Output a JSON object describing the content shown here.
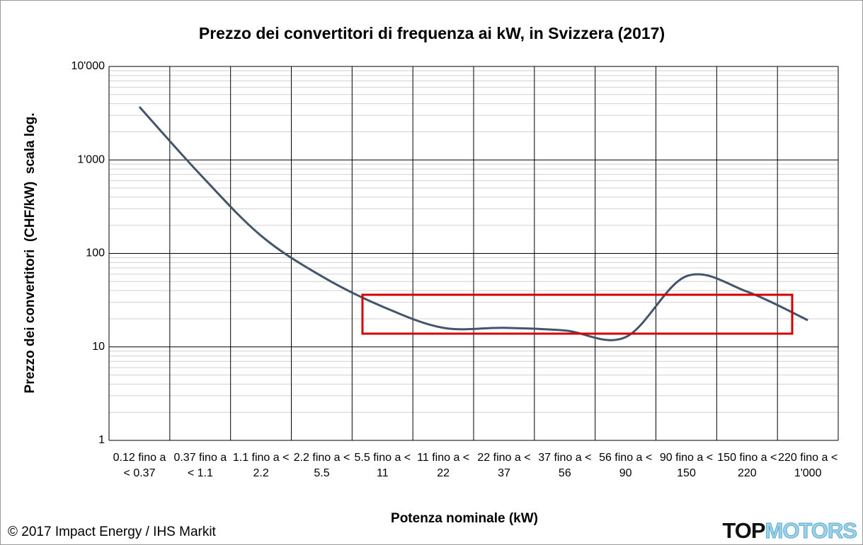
{
  "chart_data": {
    "type": "line",
    "title": "Prezzo dei convertitori di frequenza ai kW, in Svizzera (2017)",
    "x_label": "Potenza nominale (kW)",
    "y_label": "Prezzo dei convertitori  (CHF/kW)  scala log.",
    "categories": [
      "0.12 fino a < 0.37",
      "0.37 fino a < 1.1",
      "1.1 fino a < 2.2",
      "2.2 fino a < 5.5",
      "5.5 fino a < 11",
      "11 fino a < 22",
      "22 fino a < 37",
      "37 fino a < 56",
      "56 fino a < 90",
      "90 fino a < 150",
      "150 fino a < 220",
      "220 fino a < 1'000"
    ],
    "series": [
      {
        "name": "Prezzo",
        "color": "#44546a",
        "values": [
          3700,
          700,
          155,
          57,
          27,
          16,
          16,
          15,
          12.7,
          57,
          39,
          19.3
        ]
      }
    ],
    "ylim": [
      1,
      10000
    ],
    "yticks": [
      1,
      10,
      100,
      {
        "value": 1000,
        "label": "1'000"
      },
      {
        "value": 10000,
        "label": "10'000"
      }
    ],
    "log_scale": true,
    "grid": true,
    "minor_grid": true,
    "footer": "© 2017 Impact Energy / IHS Markit",
    "logo": [
      "TOP",
      "MOTORS"
    ]
  }
}
